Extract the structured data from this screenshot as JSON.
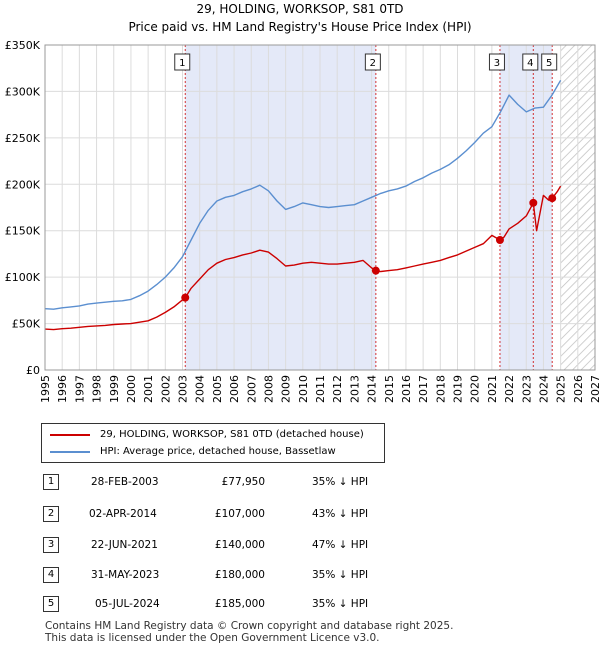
{
  "chart_data": {
    "type": "line",
    "title": "29, HOLDING, WORKSOP, S81 0TD",
    "subtitle": "Price paid vs. HM Land Registry's House Price Index (HPI)",
    "xlim": [
      1995,
      2027
    ],
    "ylim": [
      0,
      350000
    ],
    "x_ticks": [
      1995,
      1996,
      1997,
      1998,
      1999,
      2000,
      2001,
      2002,
      2003,
      2004,
      2005,
      2006,
      2007,
      2008,
      2009,
      2010,
      2011,
      2012,
      2013,
      2014,
      2015,
      2016,
      2017,
      2018,
      2019,
      2020,
      2021,
      2022,
      2023,
      2024,
      2025,
      2026,
      2027
    ],
    "y_ticks": [
      {
        "value": 0,
        "label": "£0"
      },
      {
        "value": 50000,
        "label": "£50K"
      },
      {
        "value": 100000,
        "label": "£100K"
      },
      {
        "value": 150000,
        "label": "£150K"
      },
      {
        "value": 200000,
        "label": "£200K"
      },
      {
        "value": 250000,
        "label": "£250K"
      },
      {
        "value": 300000,
        "label": "£300K"
      },
      {
        "value": 350000,
        "label": "£350K"
      }
    ],
    "grid": true,
    "shaded_periods": [
      [
        2003.16,
        2014.25
      ],
      [
        2021.47,
        2023.41
      ],
      [
        2023.41,
        2024.51
      ]
    ],
    "forecast_start": 2025.0,
    "colors": {
      "price": "#cc0000",
      "hpi": "#5b8fd0",
      "shade": "#e4e9f8",
      "event_line": "#cc0000",
      "hatch": "#bfbfbf"
    },
    "series": [
      {
        "name": "29, HOLDING, WORKSOP, S81 0TD (detached house)",
        "color": "#cc0000",
        "x": [
          1995.0,
          1995.5,
          1996.0,
          1996.5,
          1997.0,
          1997.5,
          1998.0,
          1998.5,
          1999.0,
          1999.5,
          2000.0,
          2000.5,
          2001.0,
          2001.5,
          2002.0,
          2002.5,
          2003.16,
          2003.5,
          2004.0,
          2004.5,
          2005.0,
          2005.5,
          2006.0,
          2006.5,
          2007.0,
          2007.5,
          2008.0,
          2008.5,
          2009.0,
          2009.5,
          2010.0,
          2010.5,
          2011.0,
          2011.5,
          2012.0,
          2012.5,
          2013.0,
          2013.5,
          2014.0,
          2014.25,
          2014.5,
          2015.0,
          2015.5,
          2016.0,
          2016.5,
          2017.0,
          2017.5,
          2018.0,
          2018.5,
          2019.0,
          2019.5,
          2020.0,
          2020.5,
          2021.0,
          2021.47,
          2021.7,
          2022.0,
          2022.5,
          2023.0,
          2023.41,
          2023.6,
          2024.0,
          2024.3,
          2024.51,
          2024.8,
          2025.0
        ],
        "y": [
          44000,
          43500,
          44500,
          45000,
          46000,
          47000,
          47500,
          48000,
          49000,
          49500,
          50000,
          51500,
          53000,
          57000,
          62000,
          68000,
          77950,
          88000,
          98000,
          108000,
          115000,
          119000,
          121000,
          124000,
          126000,
          129000,
          127000,
          120000,
          112000,
          113000,
          115000,
          116000,
          115000,
          114000,
          114000,
          115000,
          116000,
          118000,
          110000,
          107000,
          106000,
          107000,
          108000,
          110000,
          112000,
          114000,
          116000,
          118000,
          121000,
          124000,
          128000,
          132000,
          136000,
          145000,
          140000,
          143000,
          152000,
          158000,
          166000,
          180000,
          150000,
          188000,
          183000,
          185000,
          192000,
          198000
        ]
      },
      {
        "name": "HPI: Average price, detached house, Bassetlaw",
        "color": "#5b8fd0",
        "x": [
          1995.0,
          1995.5,
          1996.0,
          1996.5,
          1997.0,
          1997.5,
          1998.0,
          1998.5,
          1999.0,
          1999.5,
          2000.0,
          2000.5,
          2001.0,
          2001.5,
          2002.0,
          2002.5,
          2003.0,
          2003.5,
          2004.0,
          2004.5,
          2005.0,
          2005.5,
          2006.0,
          2006.5,
          2007.0,
          2007.5,
          2008.0,
          2008.5,
          2009.0,
          2009.5,
          2010.0,
          2010.5,
          2011.0,
          2011.5,
          2012.0,
          2012.5,
          2013.0,
          2013.5,
          2014.0,
          2014.5,
          2015.0,
          2015.5,
          2016.0,
          2016.5,
          2017.0,
          2017.5,
          2018.0,
          2018.5,
          2019.0,
          2019.5,
          2020.0,
          2020.5,
          2021.0,
          2021.5,
          2022.0,
          2022.5,
          2023.0,
          2023.5,
          2024.0,
          2024.5,
          2025.0
        ],
        "y": [
          66000,
          65500,
          67000,
          68000,
          69000,
          71000,
          72000,
          73000,
          74000,
          74500,
          76000,
          80000,
          85000,
          92000,
          100000,
          110000,
          122000,
          140000,
          158000,
          172000,
          182000,
          186000,
          188000,
          192000,
          195000,
          199000,
          193000,
          182000,
          173000,
          176000,
          180000,
          178000,
          176000,
          175000,
          176000,
          177000,
          178000,
          182000,
          186000,
          190000,
          193000,
          195000,
          198000,
          203000,
          207000,
          212000,
          216000,
          221000,
          228000,
          236000,
          245000,
          255000,
          262000,
          278000,
          296000,
          286000,
          278000,
          282000,
          283000,
          296000,
          312000
        ]
      }
    ],
    "sale_markers": [
      {
        "label": "1",
        "x": 2003.16,
        "y": 77950
      },
      {
        "label": "2",
        "x": 2014.25,
        "y": 107000
      },
      {
        "label": "3",
        "x": 2021.47,
        "y": 140000
      },
      {
        "label": "4",
        "x": 2023.41,
        "y": 180000
      },
      {
        "label": "5",
        "x": 2024.51,
        "y": 185000
      }
    ]
  },
  "legend": {
    "items": [
      {
        "label": "29, HOLDING, WORKSOP, S81 0TD (detached house)",
        "color": "#cc0000"
      },
      {
        "label": "HPI: Average price, detached house, Bassetlaw",
        "color": "#5b8fd0"
      }
    ]
  },
  "sales": [
    {
      "num": "1",
      "date": "28-FEB-2003",
      "price": "£77,950",
      "hpi": "35% ↓ HPI"
    },
    {
      "num": "2",
      "date": "02-APR-2014",
      "price": "£107,000",
      "hpi": "43% ↓ HPI"
    },
    {
      "num": "3",
      "date": "22-JUN-2021",
      "price": "£140,000",
      "hpi": "47% ↓ HPI"
    },
    {
      "num": "4",
      "date": "31-MAY-2023",
      "price": "£180,000",
      "hpi": "35% ↓ HPI"
    },
    {
      "num": "5",
      "date": "05-JUL-2024",
      "price": "£185,000",
      "hpi": "35% ↓ HPI"
    }
  ],
  "footer": {
    "line1": "Contains HM Land Registry data © Crown copyright and database right 2025.",
    "line2": "This data is licensed under the Open Government Licence v3.0."
  }
}
